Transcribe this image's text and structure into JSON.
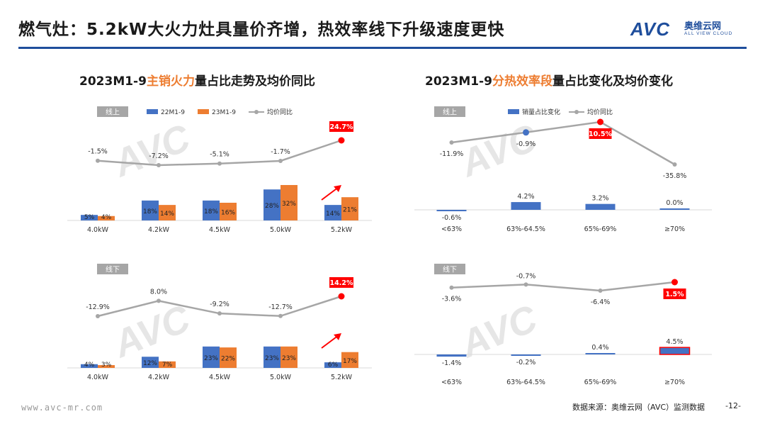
{
  "header": {
    "title": "燃气灶：5.2kW大火力灶具量价齐增，热效率线下升级速度更快",
    "logo_text": "AVC",
    "logo_cn": "奥维云网",
    "logo_en": "ALL VIEW CLOUD"
  },
  "left_panel": {
    "subtitle_pre": "2023M1-9",
    "subtitle_hl": "主销火力",
    "subtitle_post": "量占比走势及均价同比"
  },
  "right_panel": {
    "subtitle_pre": "2023M1-9",
    "subtitle_hl": "分热效率段",
    "subtitle_post": "量占比变化及均价变化"
  },
  "footer": {
    "url": "www.avc-mr.com",
    "source": "数据来源：奥维云网（AVC）监测数据",
    "page": "-12-"
  },
  "colors": {
    "blue": "#4472c4",
    "orange": "#ed7d31",
    "line": "#a6a6a6",
    "highlight": "#ff0000",
    "title_rule": "#1f4e9c"
  },
  "chart_data": [
    {
      "id": "power_online",
      "type": "bar",
      "panel_tag": "线上",
      "categories": [
        "4.0kW",
        "4.2kW",
        "4.5kW",
        "5.0kW",
        "5.2kW"
      ],
      "series": [
        {
          "name": "22M1-9",
          "values": [
            5,
            18,
            18,
            28,
            14
          ],
          "labels": [
            "5%",
            "18%",
            "18%",
            "28%",
            "14%"
          ],
          "color": "#4472c4"
        },
        {
          "name": "23M1-9",
          "values": [
            4,
            14,
            16,
            32,
            21
          ],
          "labels": [
            "4%",
            "14%",
            "16%",
            "32%",
            "21%"
          ],
          "color": "#ed7d31"
        }
      ],
      "line": {
        "name": "均价同比",
        "values": [
          -1.5,
          -7.2,
          -5.1,
          -1.7,
          24.7
        ],
        "labels": [
          "-1.5%",
          "-7.2%",
          "-5.1%",
          "-1.7%",
          "24.7%"
        ],
        "highlight_index": 4
      },
      "legend": [
        "22M1-9",
        "23M1-9",
        "均价同比"
      ],
      "arrow_on": "5.2kW"
    },
    {
      "id": "power_offline",
      "type": "bar",
      "panel_tag": "线下",
      "categories": [
        "4.0kW",
        "4.2kW",
        "4.5kW",
        "5.0kW",
        "5.2kW"
      ],
      "series": [
        {
          "name": "22M1-9",
          "values": [
            4,
            12,
            23,
            23,
            6
          ],
          "labels": [
            "4%",
            "12%",
            "23%",
            "23%",
            "6%"
          ],
          "color": "#4472c4"
        },
        {
          "name": "23M1-9",
          "values": [
            3,
            7,
            22,
            23,
            17
          ],
          "labels": [
            "3%",
            "7%",
            "22%",
            "23%",
            "17%"
          ],
          "color": "#ed7d31"
        }
      ],
      "line": {
        "name": "均价同比",
        "values": [
          -12.9,
          8.0,
          -9.2,
          -12.7,
          14.2
        ],
        "labels": [
          "-12.9%",
          "8.0%",
          "-9.2%",
          "-12.7%",
          "14.2%"
        ],
        "highlight_index": 4
      },
      "arrow_on": "5.2kW"
    },
    {
      "id": "efficiency_online",
      "type": "bar",
      "panel_tag": "线上",
      "categories": [
        "<63%",
        "63%-64.5%",
        "65%-69%",
        "≥70%"
      ],
      "series": [
        {
          "name": "销量占比变化",
          "values": [
            -0.6,
            4.2,
            3.2,
            0.0
          ],
          "labels": [
            "-0.6%",
            "4.2%",
            "3.2%",
            "0.0%"
          ],
          "color": "#4472c4"
        }
      ],
      "line": {
        "name": "均价同比",
        "values": [
          -11.9,
          -0.9,
          10.5,
          -35.8
        ],
        "labels": [
          "-11.9%",
          "-0.9%",
          "10.5%",
          "-35.8%"
        ],
        "highlight_index": 2,
        "blue_index": 1
      },
      "legend": [
        "销量占比变化",
        "均价同比"
      ]
    },
    {
      "id": "efficiency_offline",
      "type": "bar",
      "panel_tag": "线下",
      "categories": [
        "<63%",
        "63%-64.5%",
        "65%-69%",
        "≥70%"
      ],
      "series": [
        {
          "name": "销量占比变化",
          "values": [
            -1.4,
            -0.2,
            0.4,
            4.5
          ],
          "labels": [
            "-1.4%",
            "-0.2%",
            "0.4%",
            "4.5%"
          ],
          "color": "#4472c4"
        }
      ],
      "line": {
        "name": "均价同比",
        "values": [
          -3.6,
          -0.7,
          -6.4,
          1.5
        ],
        "labels": [
          "-3.6%",
          "-0.7%",
          "-6.4%",
          "1.5%"
        ],
        "highlight_index": 3
      },
      "outlined_bar_index": 3
    }
  ]
}
